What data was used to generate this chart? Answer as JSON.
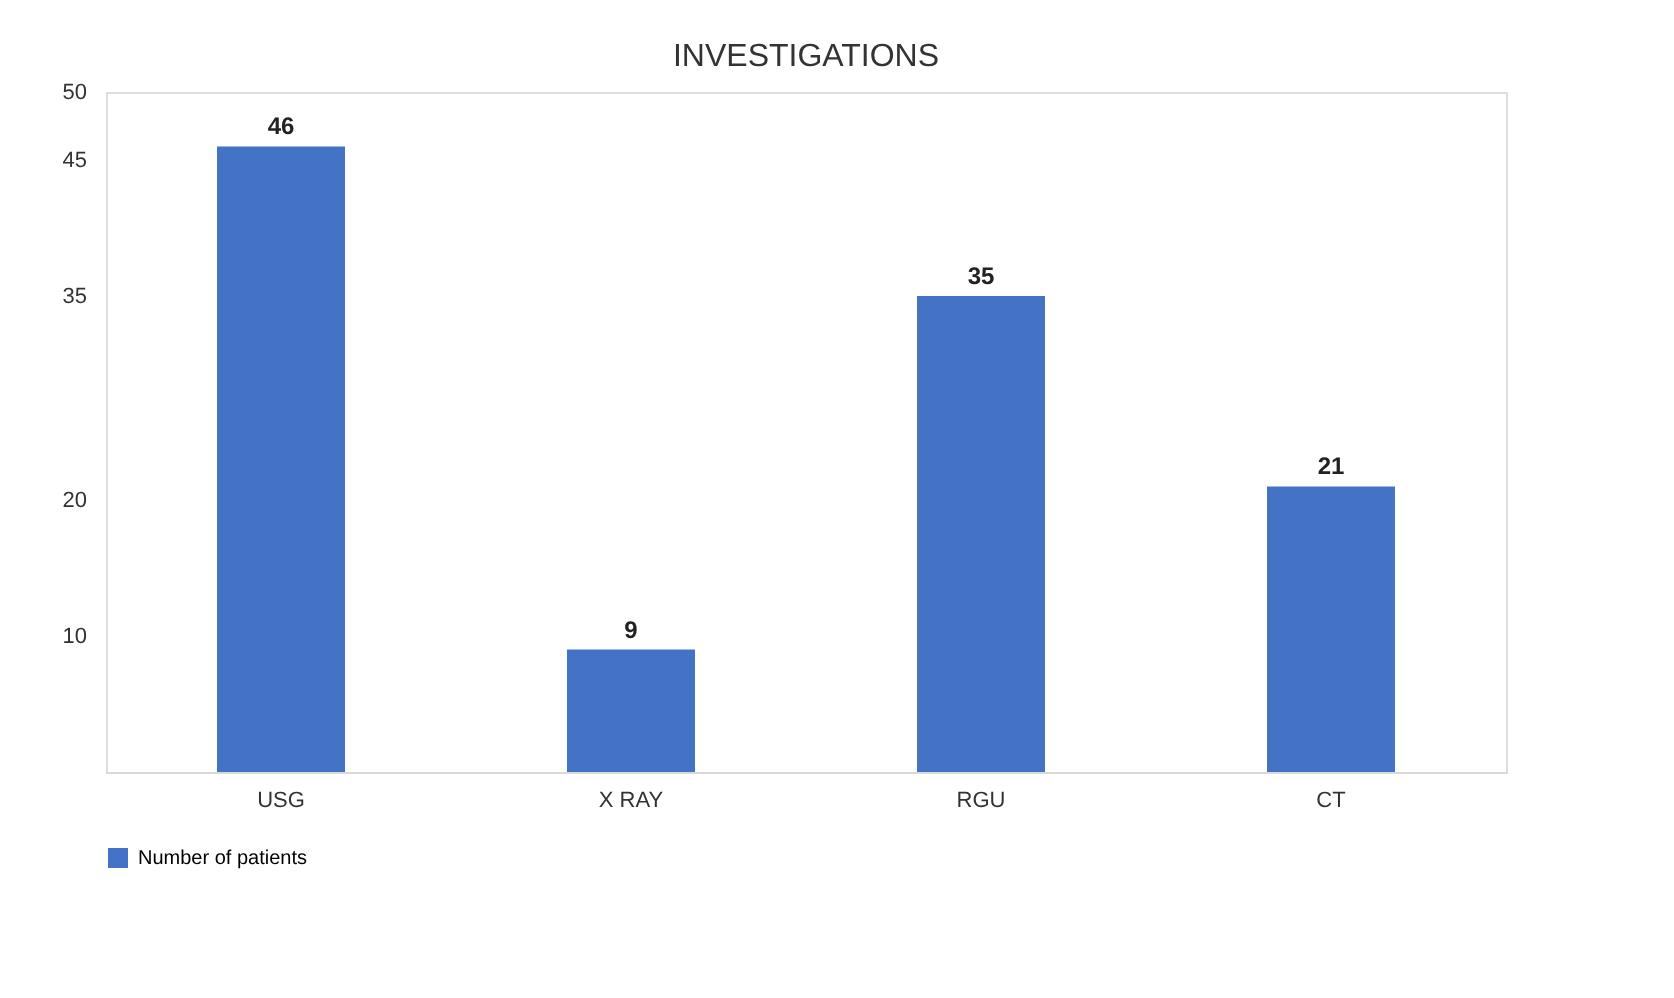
{
  "chart_data": {
    "type": "bar",
    "title": "INVESTIGATIONS",
    "categories": [
      "USG",
      "X RAY",
      "RGU",
      "CT"
    ],
    "series": [
      {
        "name": "Number of patients",
        "color": "#4472c4",
        "values": [
          46,
          9,
          35,
          21
        ]
      }
    ],
    "ylim": [
      0,
      50
    ],
    "yticks": [
      10,
      20,
      35,
      45,
      50
    ],
    "grid": false,
    "legend": "bottom",
    "data_labels": true
  }
}
